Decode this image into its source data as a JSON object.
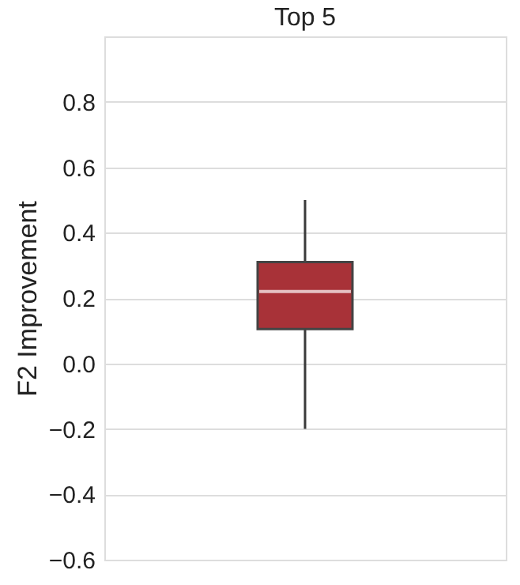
{
  "chart_data": {
    "type": "box",
    "title": "Top 5",
    "ylabel": "F2 Improvement",
    "categories": [
      null
    ],
    "ylim": [
      -0.6,
      1.0
    ],
    "yticks": [
      {
        "value": -0.6,
        "label": "−0.6"
      },
      {
        "value": -0.4,
        "label": "−0.4"
      },
      {
        "value": -0.2,
        "label": "−0.2"
      },
      {
        "value": 0,
        "label": "0.0"
      },
      0.2,
      0.4,
      0.6,
      0.8
    ],
    "grid": "y",
    "series": [
      {
        "color": "#a83238",
        "boxes": [
          {
            "low": -0.2,
            "q1": 0.105,
            "median": 0.22,
            "q3": 0.31,
            "high": 0.5
          }
        ]
      }
    ]
  }
}
